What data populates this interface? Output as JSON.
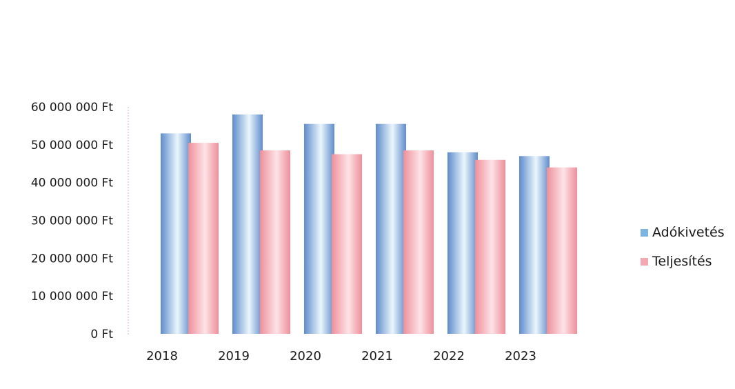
{
  "chart_data": {
    "type": "bar",
    "categories": [
      "2018",
      "2019",
      "2020",
      "2021",
      "2022",
      "2023"
    ],
    "series": [
      {
        "name": "Adókivetés",
        "values": [
          53000000,
          58000000,
          55500000,
          55500000,
          48000000,
          47000000
        ]
      },
      {
        "name": "Teljesítés",
        "values": [
          50500000,
          48500000,
          47500000,
          48500000,
          46000000,
          44000000
        ]
      }
    ],
    "ylim": [
      0,
      60000000
    ],
    "yticks": [
      "0 Ft",
      "10 000 000 Ft",
      "20 000 000 Ft",
      "30 000 000 Ft",
      "40 000 000 Ft",
      "50 000 000 Ft",
      "60 000 000 Ft"
    ],
    "ytick_values": [
      0,
      10000000,
      20000000,
      30000000,
      40000000,
      50000000,
      60000000
    ],
    "legend_position": "right",
    "grid": false,
    "colors": {
      "Adókivetés": {
        "dark": "#5f8ccc",
        "light": "#eaf6fc"
      },
      "Teljesítés": {
        "dark": "#ee8f9a",
        "light": "#fde3e7"
      }
    },
    "title": "",
    "xlabel": "",
    "ylabel": ""
  }
}
